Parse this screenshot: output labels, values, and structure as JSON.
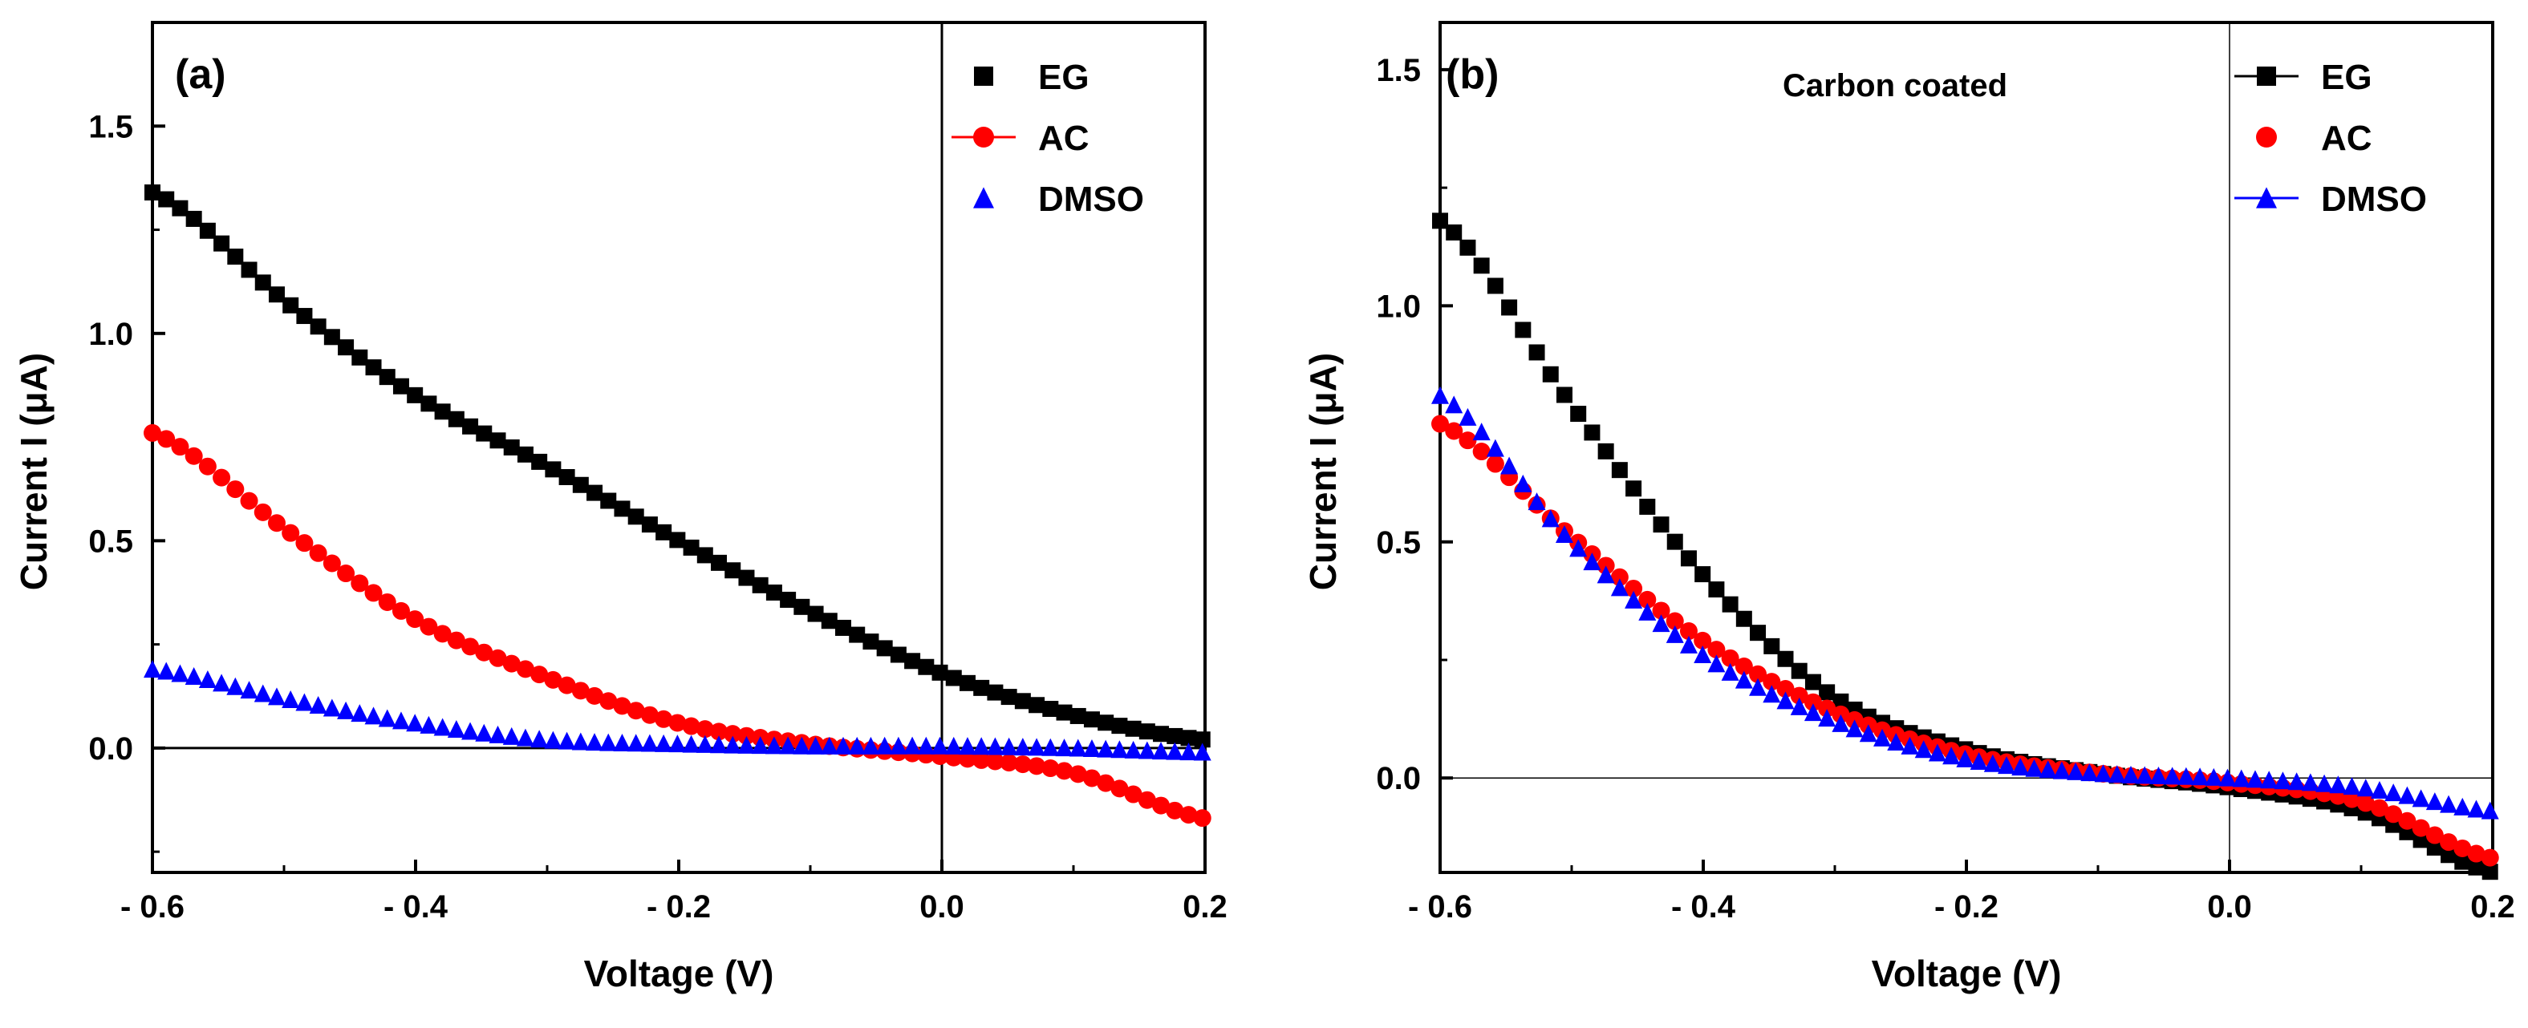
{
  "chart_data": [
    {
      "type": "scatter",
      "panel_label": "(a)",
      "annotation": "",
      "xlabel": "Voltage (V)",
      "ylabel_main": "Current I (",
      "ylabel_mu": "μ",
      "ylabel_end": "A)",
      "xlim": [
        -0.6,
        0.2
      ],
      "ylim": [
        -0.3,
        1.75
      ],
      "x_ticks": [
        -0.6,
        -0.4,
        -0.2,
        0.0,
        0.2
      ],
      "x_tick_labels": [
        "- 0.6",
        "- 0.4",
        "- 0.2",
        "0.0",
        "0.2"
      ],
      "y_ticks": [
        0.0,
        0.5,
        1.0,
        1.5
      ],
      "y_tick_labels": [
        "0.0",
        "0.5",
        "1.0",
        "1.5"
      ],
      "reference_lines": {
        "x": 0,
        "y": 0
      },
      "legend_position": "top-right",
      "series": [
        {
          "name": "EG",
          "marker": "square",
          "color": "#000000",
          "legend_line": false,
          "x": [
            -0.6,
            -0.5,
            -0.4,
            -0.3,
            -0.2,
            -0.1,
            0.0,
            0.1,
            0.2
          ],
          "y": [
            1.34,
            1.08,
            0.85,
            0.68,
            0.5,
            0.33,
            0.18,
            0.08,
            0.02
          ]
        },
        {
          "name": "AC",
          "marker": "circle",
          "color": "#ff0000",
          "legend_line": true,
          "x": [
            -0.6,
            -0.5,
            -0.4,
            -0.3,
            -0.2,
            -0.1,
            0.0,
            0.1,
            0.2
          ],
          "y": [
            0.76,
            0.53,
            0.31,
            0.17,
            0.06,
            0.01,
            -0.02,
            -0.06,
            -0.17
          ]
        },
        {
          "name": "DMSO",
          "marker": "triangle",
          "color": "#0000ff",
          "legend_line": false,
          "x": [
            -0.6,
            -0.5,
            -0.4,
            -0.3,
            -0.2,
            -0.1,
            0.0,
            0.1,
            0.2
          ],
          "y": [
            0.19,
            0.12,
            0.06,
            0.02,
            0.01,
            0.005,
            0.005,
            0.0,
            -0.01
          ]
        }
      ]
    },
    {
      "type": "scatter",
      "panel_label": "(b)",
      "annotation": "Carbon coated",
      "xlabel": "Voltage (V)",
      "ylabel_main": "Current I (",
      "ylabel_mu": "μ",
      "ylabel_end": "A)",
      "xlim": [
        -0.6,
        0.2
      ],
      "ylim": [
        -0.2,
        1.6
      ],
      "x_ticks": [
        -0.6,
        -0.4,
        -0.2,
        0.0,
        0.2
      ],
      "x_tick_labels": [
        "- 0.6",
        "- 0.4",
        "- 0.2",
        "0.0",
        "0.2"
      ],
      "y_ticks": [
        0.0,
        0.5,
        1.0,
        1.5
      ],
      "y_tick_labels": [
        "0.0",
        "0.5",
        "1.0",
        "1.5"
      ],
      "reference_lines": {
        "x": 0,
        "y": 0
      },
      "legend_position": "top-right",
      "series": [
        {
          "name": "EG",
          "marker": "square",
          "color": "#000000",
          "legend_line": true,
          "x": [
            -0.6,
            -0.5,
            -0.4,
            -0.3,
            -0.2,
            -0.1,
            0.0,
            0.1,
            0.2
          ],
          "y": [
            1.18,
            0.79,
            0.43,
            0.17,
            0.06,
            0.01,
            -0.02,
            -0.07,
            -0.2
          ]
        },
        {
          "name": "AC",
          "marker": "circle",
          "color": "#ff0000",
          "legend_line": false,
          "x": [
            -0.6,
            -0.5,
            -0.4,
            -0.3,
            -0.2,
            -0.1,
            0.0,
            0.1,
            0.2
          ],
          "y": [
            0.75,
            0.51,
            0.29,
            0.14,
            0.05,
            0.01,
            -0.01,
            -0.05,
            -0.17
          ]
        },
        {
          "name": "DMSO",
          "marker": "triangle",
          "color": "#0000ff",
          "legend_line": true,
          "x": [
            -0.6,
            -0.5,
            -0.4,
            -0.3,
            -0.2,
            -0.1,
            0.0,
            0.1,
            0.2
          ],
          "y": [
            0.81,
            0.5,
            0.26,
            0.12,
            0.04,
            0.01,
            0.0,
            -0.02,
            -0.07
          ]
        }
      ]
    }
  ]
}
